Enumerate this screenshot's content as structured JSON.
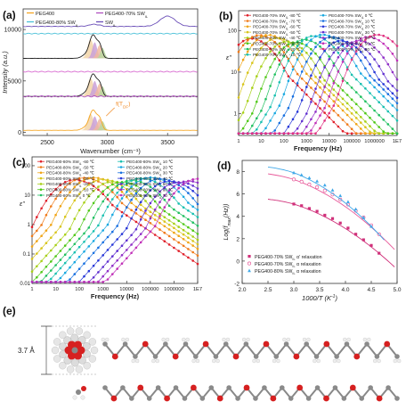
{
  "panel_letters": [
    "(a)",
    "(b)",
    "(c)",
    "(d)",
    "(e)"
  ],
  "panel_e": {
    "dimension_label": "3.7 Å"
  },
  "chart_data": [
    {
      "panel": "(a)",
      "type": "line",
      "xlabel": "Wavenumber (cm⁻¹)",
      "ylabel": "Intensity (a.u.)",
      "xlim": [
        2300,
        3750
      ],
      "ylim": [
        -300,
        12000
      ],
      "x_ticks": [
        2500,
        3000,
        3500
      ],
      "y_ticks": [
        0,
        5000,
        10000
      ],
      "annotation": {
        "text": "f(T_DF)",
        "color": "#f08a24"
      },
      "legend": [
        {
          "name": "PEG400",
          "color": "#f5a623"
        },
        {
          "name": "PEG400-70% SW_IL",
          "color": "#b050c0"
        },
        {
          "name": "PEG400-80% SW_IL",
          "color": "#49c0d8"
        },
        {
          "name": "SW_IL",
          "color": "#6b4fb8"
        }
      ],
      "series": [
        {
          "name": "PEG400",
          "color": "#f5a623",
          "offset": 0,
          "x": [
            2300,
            2600,
            2800,
            2850,
            2880,
            2900,
            2930,
            2960,
            3000,
            3100,
            3750
          ],
          "y": [
            0,
            0,
            10,
            60,
            180,
            120,
            60,
            20,
            0,
            0,
            0
          ]
        },
        {
          "name": "PEG400-80% SW_IL",
          "color": "#49c0d8",
          "offset": 9600,
          "x": [
            2300,
            2800,
            2880,
            2950,
            3100,
            3400,
            3750
          ],
          "y": [
            0,
            20,
            140,
            60,
            0,
            20,
            0
          ]
        },
        {
          "name": "PEG400-70% SW_IL",
          "color": "#b050c0",
          "offset": 3500,
          "x": [
            2300,
            2800,
            2880,
            2950,
            3100,
            3400,
            3750
          ],
          "y": [
            0,
            20,
            140,
            60,
            0,
            20,
            0
          ]
        },
        {
          "name": "SW_IL",
          "color": "#6b4fb8",
          "offset": 10400,
          "x": [
            2300,
            2700,
            2900,
            3100,
            3300,
            3450,
            3500,
            3550,
            3650,
            3750
          ],
          "y": [
            0,
            50,
            150,
            250,
            500,
            1000,
            1300,
            1000,
            400,
            200
          ]
        }
      ]
    },
    {
      "panel": "(b)",
      "type": "scatter",
      "xlabel": "Frequency (Hz)",
      "ylabel": "ε''",
      "x_scale": "log",
      "y_scale": "log",
      "xlim": [
        1,
        10000000
      ],
      "ylim": [
        0.3,
        300
      ],
      "x_tick_labels": [
        "1",
        "10",
        "100",
        "1000",
        "10000",
        "100000",
        "1000000",
        "1E7"
      ],
      "y_tick_labels": [
        "1",
        "10",
        "100"
      ],
      "legend_prefix": "PEG400-70% SW",
      "legend": [
        {
          "temp": "-80 ℃",
          "color": "#e0202a"
        },
        {
          "temp": "-70 ℃",
          "color": "#f07a18"
        },
        {
          "temp": "-60 ℃",
          "color": "#f0a518"
        },
        {
          "temp": "-50 ℃",
          "color": "#d8c51c"
        },
        {
          "temp": "-40 ℃",
          "color": "#a8d018"
        },
        {
          "temp": "-30 ℃",
          "color": "#50c818"
        },
        {
          "temp": "-20 ℃",
          "color": "#20c060"
        },
        {
          "temp": "-10 ℃",
          "color": "#18c0b0"
        },
        {
          "temp": "0 ℃",
          "color": "#18a8e0"
        },
        {
          "temp": "10 ℃",
          "color": "#1870e0"
        },
        {
          "temp": "20 ℃",
          "color": "#2838d8"
        },
        {
          "temp": "30 ℃",
          "color": "#6030d0"
        },
        {
          "temp": "40 ℃",
          "color": "#9030c8"
        },
        {
          "temp": "50 ℃",
          "color": "#c030b8"
        },
        {
          "temp": "60 ℃",
          "color": "#e03080"
        }
      ],
      "peak_log_freq": [
        0.55,
        0.9,
        1.3,
        1.7,
        2.1,
        2.5,
        2.9,
        3.3,
        3.7,
        4.1,
        4.5,
        4.9,
        5.3,
        5.7,
        6.1
      ],
      "peak_value": 80
    },
    {
      "panel": "(c)",
      "type": "scatter",
      "xlabel": "Frequency (Hz)",
      "ylabel": "ε''",
      "x_scale": "log",
      "y_scale": "log",
      "xlim": [
        1,
        10000000
      ],
      "ylim": [
        0.01,
        200
      ],
      "x_tick_labels": [
        "1",
        "10",
        "100",
        "1000",
        "10000",
        "100000",
        "1000000",
        "1E7"
      ],
      "y_tick_labels": [
        "0.01",
        "0.1",
        "1",
        "10",
        "100"
      ],
      "legend_prefix": "PEG400-80% SW",
      "legend": [
        {
          "temp": "-60 ℃",
          "color": "#e0202a"
        },
        {
          "temp": "-50 ℃",
          "color": "#f07a18"
        },
        {
          "temp": "-40 ℃",
          "color": "#f0a518"
        },
        {
          "temp": "-30 ℃",
          "color": "#d8c51c"
        },
        {
          "temp": "-20 ℃",
          "color": "#a8d018"
        },
        {
          "temp": "-10 ℃",
          "color": "#50c818"
        },
        {
          "temp": "0 ℃",
          "color": "#20c060"
        },
        {
          "temp": "10 ℃",
          "color": "#18c0b0"
        },
        {
          "temp": "20 ℃",
          "color": "#18a8e0"
        },
        {
          "temp": "30 ℃",
          "color": "#1870e0"
        },
        {
          "temp": "40 ℃",
          "color": "#2838d8"
        },
        {
          "temp": "50 ℃",
          "color": "#6030d0"
        },
        {
          "temp": "60 ℃",
          "color": "#9030c8"
        },
        {
          "temp": "70 ℃",
          "color": "#c030b8"
        }
      ],
      "peak_log_freq": [
        1.8,
        2.2,
        2.6,
        3.0,
        3.4,
        3.8,
        4.2,
        4.6,
        5.0,
        5.4,
        5.8,
        6.2,
        6.6,
        7.0
      ],
      "peak_value": 40
    },
    {
      "panel": "(d)",
      "type": "scatter",
      "xlabel": "1000/T (K⁻¹)",
      "ylabel": "Log(f_max(Hz))",
      "xlim": [
        2.0,
        5.0
      ],
      "ylim": [
        -2,
        9
      ],
      "x_ticks": [
        2.0,
        2.5,
        3.0,
        3.5,
        4.0,
        4.5,
        5.0
      ],
      "y_ticks": [
        -2,
        0,
        2,
        4,
        6,
        8
      ],
      "legend": [
        {
          "name": "PEG400-70% SW_IL α' relaxation",
          "color": "#d0307a",
          "marker": "square-filled"
        },
        {
          "name": "PEG400-70% SW_IL α relaxation",
          "color": "#e85a9a",
          "marker": "circle-open"
        },
        {
          "name": "PEG400-80% SW_IL α relaxation",
          "color": "#40a8e8",
          "marker": "triangle-filled"
        }
      ],
      "series": [
        {
          "name": "PEG400-70% SW_IL α' relaxation",
          "color": "#d0307a",
          "x": [
            3.0,
            3.15,
            3.3,
            3.45,
            3.6,
            3.75,
            3.9,
            4.05,
            4.2,
            4.35,
            4.5,
            4.65
          ],
          "y": [
            5.1,
            4.95,
            4.7,
            4.45,
            4.1,
            3.8,
            3.4,
            2.95,
            2.4,
            1.9,
            1.4,
            0.7
          ]
        },
        {
          "name": "PEG400-70% SW_IL α relaxation",
          "color": "#e85a9a",
          "x": [
            3.0,
            3.15,
            3.3,
            3.45,
            3.6,
            3.75,
            3.9,
            4.05,
            4.2,
            4.35,
            4.5,
            4.65
          ],
          "y": [
            7.3,
            7.1,
            6.85,
            6.6,
            6.3,
            5.95,
            5.5,
            5.05,
            4.5,
            3.9,
            3.2,
            2.4
          ]
        },
        {
          "name": "PEG400-80% SW_IL α relaxation",
          "color": "#40a8e8",
          "x": [
            3.0,
            3.15,
            3.3,
            3.45,
            3.6,
            3.75,
            3.9,
            4.05,
            4.2,
            4.35,
            4.5
          ],
          "y": [
            7.9,
            7.7,
            7.45,
            7.15,
            6.8,
            6.35,
            5.85,
            5.3,
            4.65,
            3.9,
            3.1
          ]
        }
      ]
    }
  ]
}
